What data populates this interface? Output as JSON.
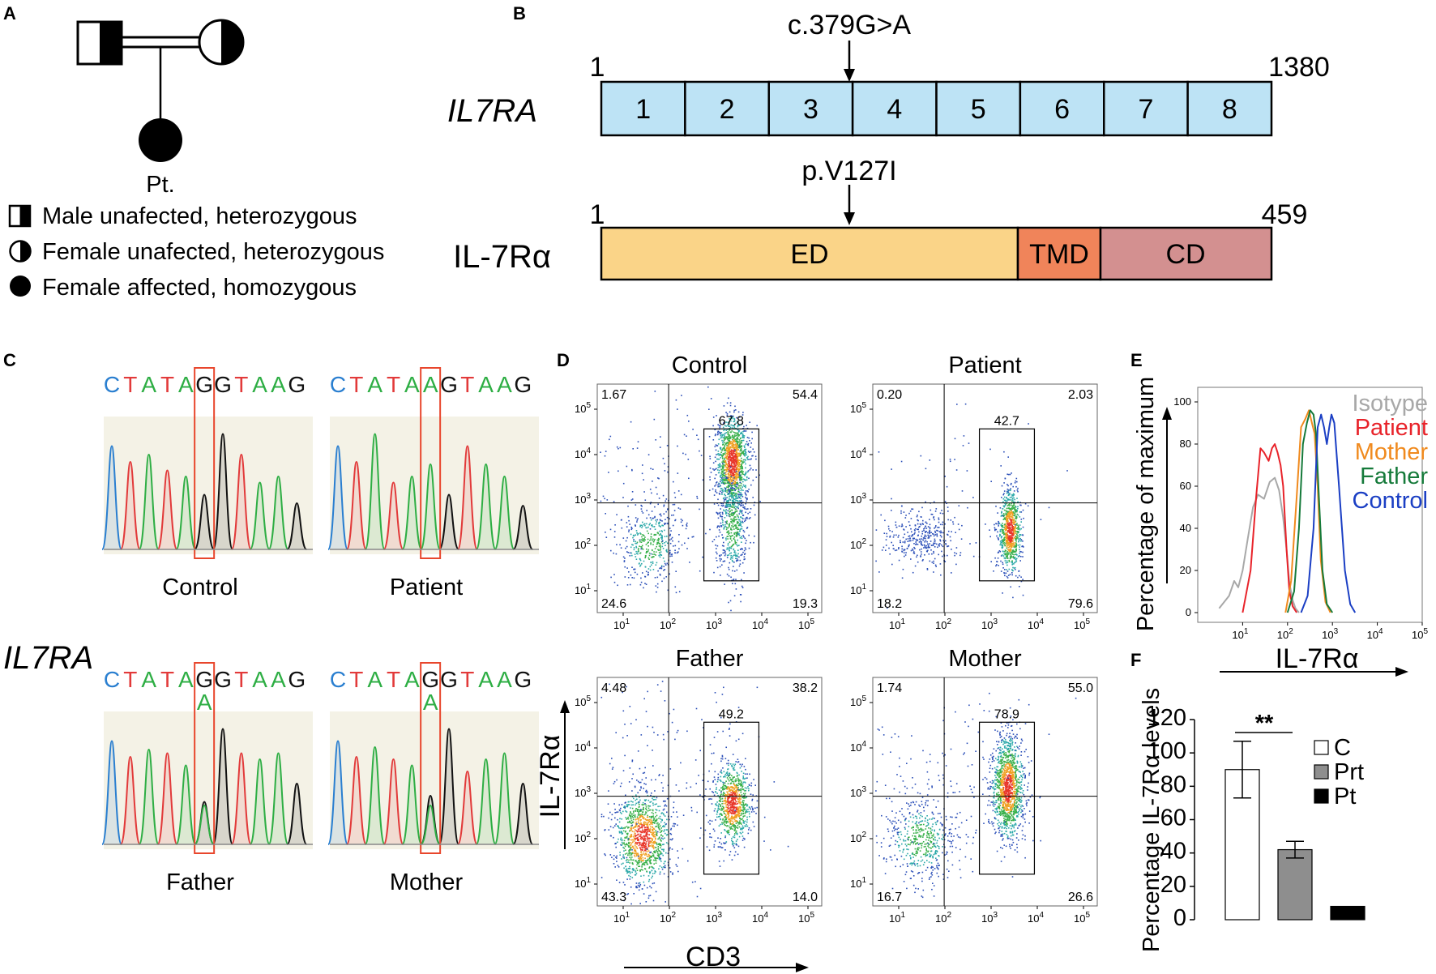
{
  "panels": {
    "a": "A",
    "b": "B",
    "c": "C",
    "d": "D",
    "e": "E",
    "f": "F"
  },
  "pedigree": {
    "proband": "Pt.",
    "legend": [
      "Male unafected, heterozygous",
      "Female unafected, heterozygous",
      "Female affected, homozygous"
    ]
  },
  "gene": {
    "name": "IL7RA",
    "start": "1",
    "end": "1380",
    "mutation": "c.379G>A",
    "exons": [
      "1",
      "2",
      "3",
      "4",
      "5",
      "6",
      "7",
      "8"
    ],
    "colors": {
      "exon": "#bde3f5"
    }
  },
  "protein": {
    "name": "IL-7Rα",
    "start": "1",
    "end": "459",
    "mutation": "p.V127I",
    "domains": [
      "ED",
      "TMD",
      "CD"
    ],
    "colors": {
      "ED": "#fad488",
      "TMD": "#f0845a",
      "CD": "#d39090"
    }
  },
  "sequencing": {
    "gene_label": "IL7RA",
    "traces": [
      {
        "name": "Control",
        "seq": [
          "C",
          "T",
          "A",
          "T",
          "A",
          "G",
          "G",
          "T",
          "A",
          "A",
          "G"
        ],
        "alt": ""
      },
      {
        "name": "Patient",
        "seq": [
          "C",
          "T",
          "A",
          "T",
          "A",
          "A",
          "G",
          "T",
          "A",
          "A",
          "G"
        ],
        "alt": ""
      },
      {
        "name": "Father",
        "seq": [
          "C",
          "T",
          "A",
          "T",
          "A",
          "G",
          "G",
          "T",
          "A",
          "A",
          "G"
        ],
        "alt": "A"
      },
      {
        "name": "Mother",
        "seq": [
          "C",
          "T",
          "A",
          "T",
          "A",
          "G",
          "G",
          "T",
          "A",
          "A",
          "G"
        ],
        "alt": "A"
      }
    ],
    "base_colors": {
      "A": "#2eae44",
      "C": "#2a7fd0",
      "G": "#111111",
      "T": "#e23a3a"
    }
  },
  "flow": {
    "xlabel": "CD3",
    "ylabel": "IL-7Rα",
    "ticks": [
      "10",
      "10",
      "10",
      "10",
      "10"
    ],
    "tick_exp": [
      "1",
      "2",
      "3",
      "4",
      "5"
    ],
    "plots": [
      {
        "name": "Control",
        "ul": "1.67",
        "ur": "54.4",
        "ll": "24.6",
        "lr": "19.3",
        "gate": "67.8"
      },
      {
        "name": "Patient",
        "ul": "0.20",
        "ur": "2.03",
        "ll": "18.2",
        "lr": "79.6",
        "gate": "42.7"
      },
      {
        "name": "Father",
        "ul": "4.48",
        "ur": "38.2",
        "ll": "43.3",
        "lr": "14.0",
        "gate": "49.2"
      },
      {
        "name": "Mother",
        "ul": "1.74",
        "ur": "55.0",
        "ll": "16.7",
        "lr": "26.6",
        "gate": "78.9"
      }
    ]
  },
  "chart_data": [
    {
      "type": "line",
      "panel": "E",
      "title": "",
      "xlabel": "IL-7Rα",
      "ylabel": "Percentage of maximum",
      "xscale": "log",
      "xlim": [
        1,
        100000
      ],
      "ylim": [
        0,
        100
      ],
      "yticks": [
        "0",
        "20",
        "40",
        "60",
        "80",
        "100"
      ],
      "xticks": [
        "10",
        "10",
        "10",
        "10",
        "10"
      ],
      "xtick_exp": [
        "1",
        "2",
        "3",
        "4",
        "5"
      ],
      "legend": "top-right",
      "series": [
        {
          "name": "Isotype",
          "color": "#a8a8a8",
          "x": [
            3,
            5,
            6.5,
            8,
            10,
            13,
            17,
            22,
            30,
            40,
            52,
            65,
            80,
            95,
            110,
            130,
            150,
            180
          ],
          "y": [
            2,
            8,
            15,
            12,
            20,
            35,
            50,
            56,
            54,
            62,
            64,
            58,
            45,
            30,
            14,
            6,
            2,
            0
          ]
        },
        {
          "name": "Patient",
          "color": "#e8232a",
          "x": [
            10,
            15,
            20,
            25,
            30,
            38,
            45,
            52,
            60,
            70,
            80,
            95,
            110,
            130,
            160
          ],
          "y": [
            0,
            20,
            55,
            78,
            76,
            72,
            78,
            80,
            76,
            70,
            60,
            30,
            10,
            3,
            0
          ]
        },
        {
          "name": "Mother",
          "color": "#f08a1e",
          "x": [
            90,
            120,
            160,
            200,
            250,
            300,
            350,
            400,
            470,
            550,
            700,
            900
          ],
          "y": [
            0,
            15,
            55,
            88,
            92,
            96,
            90,
            85,
            60,
            25,
            5,
            0
          ]
        },
        {
          "name": "Father",
          "color": "#157a3a",
          "x": [
            100,
            140,
            180,
            220,
            270,
            320,
            380,
            430,
            500,
            600,
            750,
            1000
          ],
          "y": [
            0,
            10,
            40,
            80,
            90,
            96,
            94,
            85,
            55,
            20,
            4,
            0
          ]
        },
        {
          "name": "Control",
          "color": "#1b3fc4",
          "x": [
            200,
            280,
            380,
            470,
            560,
            650,
            750,
            850,
            950,
            1100,
            1400,
            1900,
            2500,
            3200
          ],
          "y": [
            0,
            8,
            40,
            88,
            94,
            88,
            80,
            88,
            94,
            90,
            60,
            20,
            4,
            0
          ]
        }
      ]
    },
    {
      "type": "bar",
      "panel": "F",
      "title": "",
      "xlabel": "",
      "ylabel": "Percentage IL-7Rα levels",
      "categories": [
        "C",
        "Prt",
        "Pt"
      ],
      "values": [
        90,
        42,
        8
      ],
      "errors": [
        17,
        5,
        0
      ],
      "ylim": [
        0,
        120
      ],
      "yticks": [
        "0",
        "20",
        "40",
        "60",
        "80",
        "100",
        "120"
      ],
      "significance": "**",
      "legend": "right",
      "colors": [
        "#ffffff",
        "#8e8e8e",
        "#000000"
      ]
    }
  ]
}
